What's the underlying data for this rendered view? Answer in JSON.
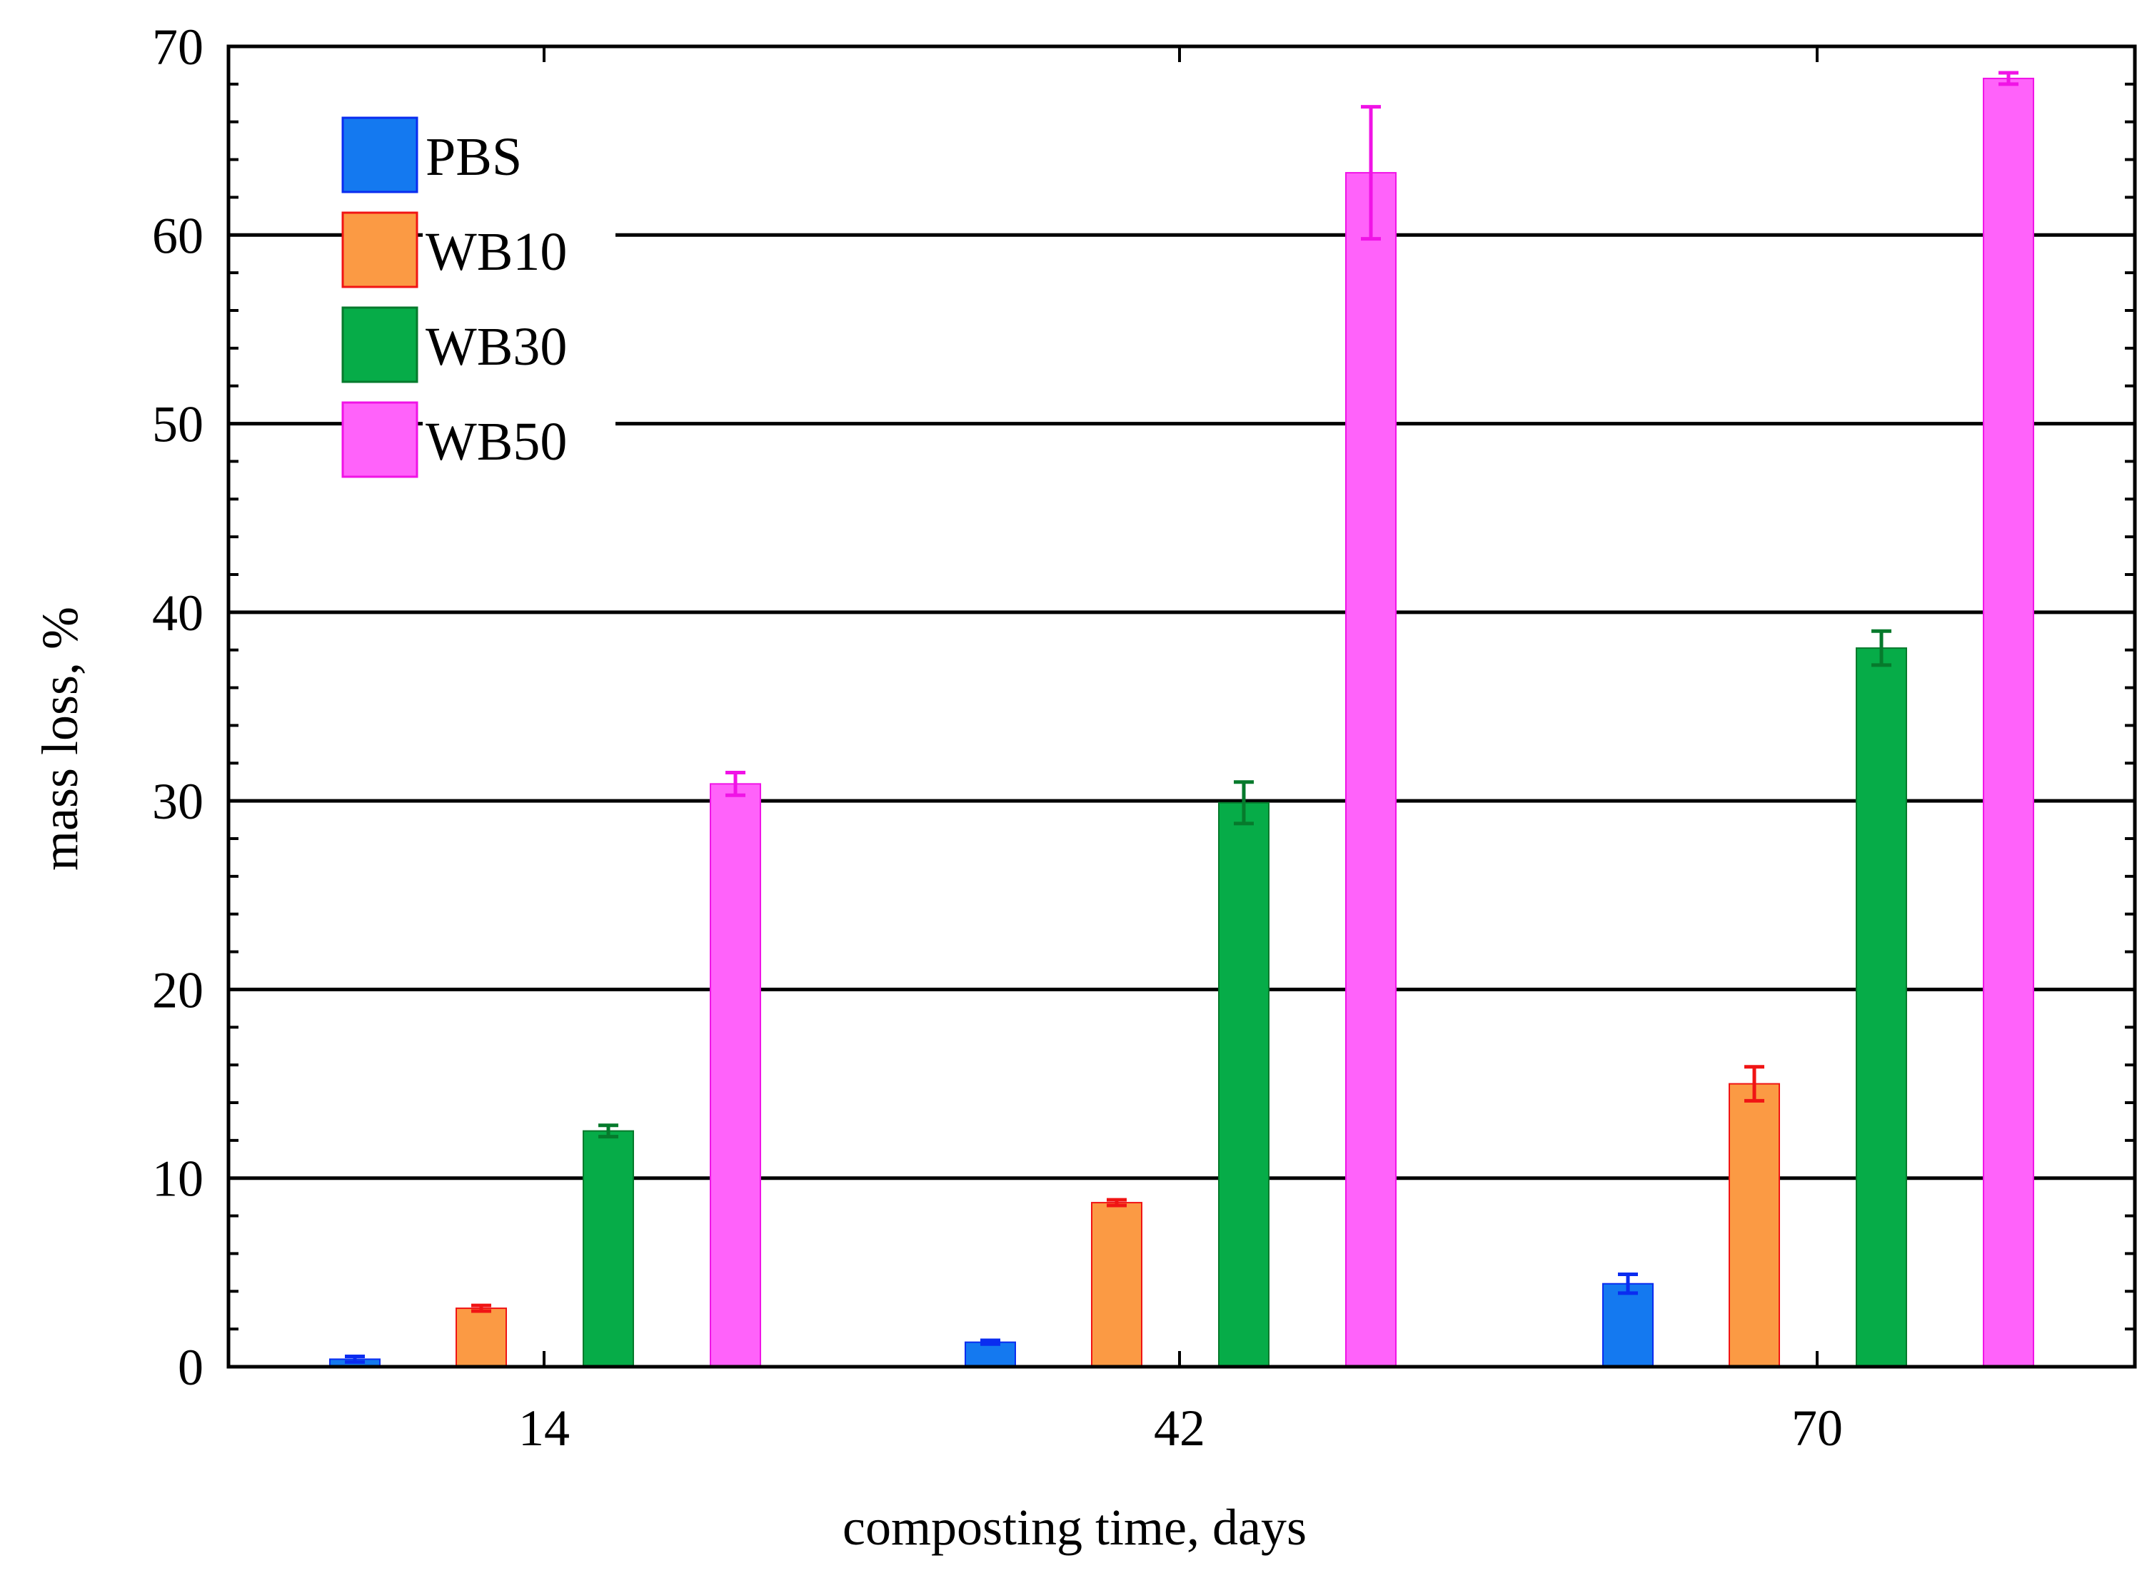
{
  "chart_data": {
    "type": "bar",
    "title": "",
    "xlabel": "composting time, days",
    "ylabel": "mass loss, %",
    "ylim": [
      0,
      70
    ],
    "yticks": [
      "0",
      "10",
      "20",
      "30",
      "40",
      "50",
      "60",
      "70"
    ],
    "categories": [
      "14",
      "42",
      "70"
    ],
    "grid": "horizontal major lines",
    "legend_position": "top-left",
    "series": [
      {
        "name": "PBS",
        "color": "#1479f0",
        "errorColor": "#0a2cf0",
        "values": [
          0.4,
          1.3,
          4.4
        ],
        "errors": [
          0.15,
          0.1,
          0.5
        ]
      },
      {
        "name": "WB10",
        "color": "#fb9a44",
        "errorColor": "#f01414",
        "values": [
          3.1,
          8.7,
          15.0
        ],
        "errors": [
          0.15,
          0.15,
          0.9
        ]
      },
      {
        "name": "WB30",
        "color": "#06ac48",
        "errorColor": "#067a2c",
        "values": [
          12.5,
          29.9,
          38.1
        ],
        "errors": [
          0.3,
          1.1,
          0.9
        ]
      },
      {
        "name": "WB50",
        "color": "#ff62fa",
        "errorColor": "#f013e6",
        "values": [
          30.9,
          63.3,
          68.3
        ],
        "errors": [
          0.6,
          3.5,
          0.3
        ]
      }
    ]
  }
}
